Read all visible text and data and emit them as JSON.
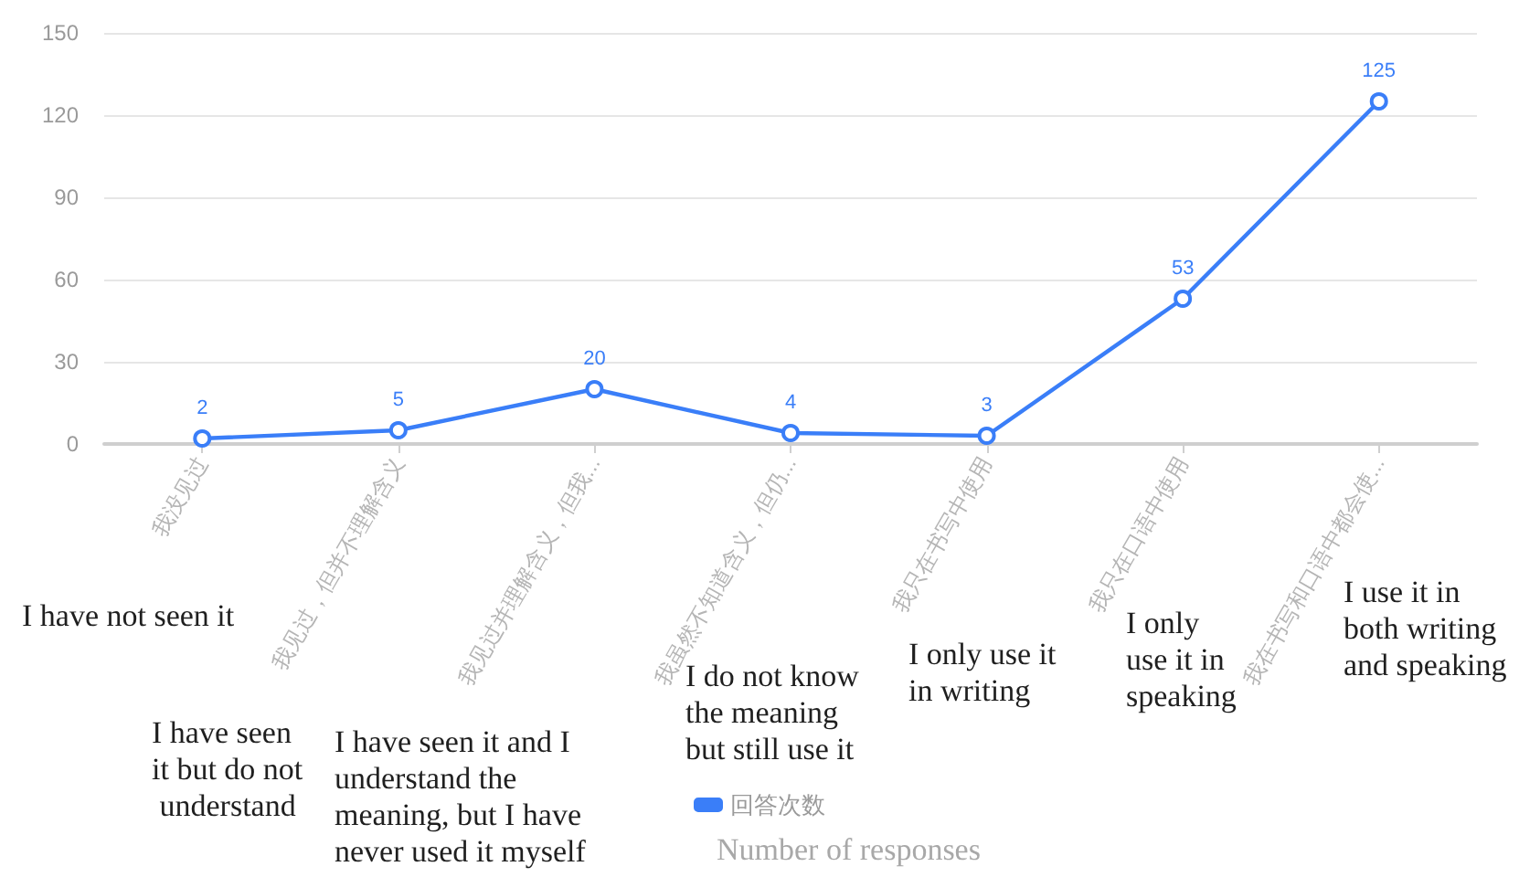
{
  "chart_data": {
    "type": "line",
    "categories": [
      "我没见过",
      "我见过，但并不理解含义",
      "我见过并理解含义，但我...",
      "我虽然不知道含义，但仍...",
      "我只在书写中使用",
      "我只在口语中使用",
      "我在书写和口语中都会使..."
    ],
    "series": [
      {
        "name": "回答次数",
        "color": "#3a7ef8",
        "values": [
          2,
          5,
          20,
          4,
          3,
          53,
          125
        ]
      }
    ],
    "ylim": [
      0,
      150
    ],
    "yticks": [
      0,
      30,
      60,
      90,
      120,
      150
    ],
    "grid": "y",
    "legend": "bottom",
    "marker": "circle",
    "line_style": "solid",
    "data_labels": true,
    "annotations": [
      "I have not seen it",
      "I have seen it but do not understand",
      "I have seen it and I understand the meaning, but I have never used it myself",
      "I do not know the meaning but still use it",
      "I only use it in writing",
      "I only use it in speaking",
      "I use it in both writing and speaking",
      "Number of responses"
    ]
  }
}
